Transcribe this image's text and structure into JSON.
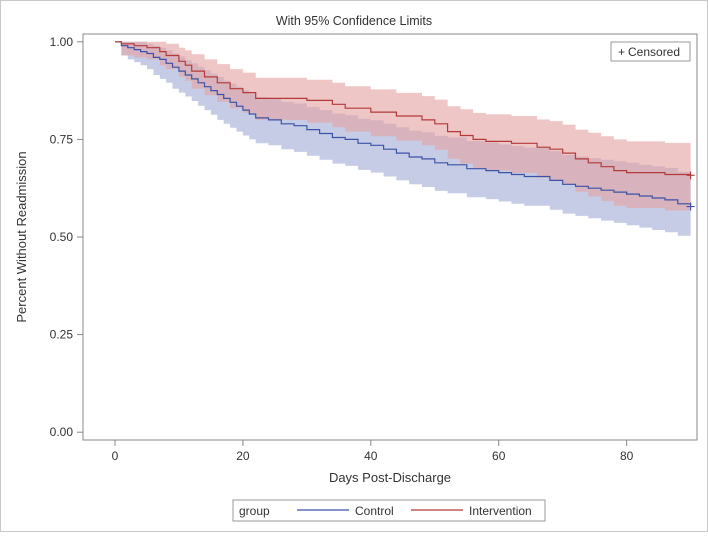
{
  "chart_data": {
    "type": "line",
    "title": "With 95% Confidence Limits",
    "xlabel": "Days Post-Discharge",
    "ylabel": "Percent Without Readmission",
    "xlim": [
      -5,
      91
    ],
    "ylim": [
      -0.02,
      1.02
    ],
    "x_ticks": [
      0,
      20,
      40,
      60,
      80
    ],
    "x_tick_labels": [
      "0",
      "20",
      "40",
      "60",
      "80"
    ],
    "y_ticks": [
      0.0,
      0.25,
      0.5,
      0.75,
      1.0
    ],
    "y_tick_labels": [
      "0.00",
      "0.25",
      "0.50",
      "0.75",
      "1.00"
    ],
    "grid": false,
    "inset_legend": {
      "label": "Censored",
      "symbol": "+",
      "position": "top-right"
    },
    "legend": {
      "title": "group",
      "position": "bottom-center"
    },
    "series": [
      {
        "name": "Control",
        "color": "#3b53a6",
        "band_color": "#a3acd6",
        "step_x": [
          0,
          1,
          2,
          3,
          4,
          5,
          6,
          7,
          8,
          9,
          10,
          11,
          12,
          13,
          14,
          15,
          16,
          17,
          18,
          19,
          20,
          21,
          22,
          24,
          26,
          28,
          30,
          32,
          34,
          36,
          38,
          40,
          42,
          44,
          46,
          48,
          50,
          52,
          55,
          58,
          60,
          62,
          64,
          66,
          68,
          70,
          72,
          74,
          76,
          78,
          80,
          82,
          84,
          86,
          88,
          90
        ],
        "step_y": [
          1.0,
          0.99,
          0.985,
          0.98,
          0.975,
          0.97,
          0.96,
          0.955,
          0.945,
          0.935,
          0.925,
          0.915,
          0.905,
          0.895,
          0.885,
          0.875,
          0.865,
          0.855,
          0.845,
          0.835,
          0.825,
          0.815,
          0.805,
          0.8,
          0.79,
          0.785,
          0.775,
          0.765,
          0.755,
          0.75,
          0.74,
          0.735,
          0.725,
          0.715,
          0.705,
          0.7,
          0.69,
          0.685,
          0.675,
          0.67,
          0.665,
          0.66,
          0.655,
          0.655,
          0.645,
          0.635,
          0.63,
          0.625,
          0.62,
          0.615,
          0.61,
          0.605,
          0.6,
          0.595,
          0.585,
          0.578
        ],
        "band_lower": [
          1.0,
          0.965,
          0.955,
          0.948,
          0.94,
          0.93,
          0.915,
          0.905,
          0.895,
          0.88,
          0.87,
          0.86,
          0.848,
          0.836,
          0.825,
          0.813,
          0.8,
          0.79,
          0.78,
          0.77,
          0.76,
          0.75,
          0.74,
          0.735,
          0.725,
          0.718,
          0.708,
          0.698,
          0.688,
          0.682,
          0.672,
          0.665,
          0.655,
          0.645,
          0.635,
          0.628,
          0.618,
          0.612,
          0.602,
          0.597,
          0.591,
          0.585,
          0.58,
          0.58,
          0.57,
          0.56,
          0.554,
          0.548,
          0.542,
          0.536,
          0.53,
          0.524,
          0.518,
          0.512,
          0.503,
          0.497
        ],
        "band_upper": [
          1.0,
          1.0,
          1.0,
          1.0,
          1.0,
          0.995,
          0.99,
          0.985,
          0.978,
          0.97,
          0.962,
          0.953,
          0.945,
          0.936,
          0.927,
          0.918,
          0.91,
          0.9,
          0.893,
          0.885,
          0.876,
          0.867,
          0.858,
          0.855,
          0.846,
          0.842,
          0.833,
          0.825,
          0.816,
          0.812,
          0.803,
          0.799,
          0.79,
          0.781,
          0.772,
          0.768,
          0.759,
          0.755,
          0.746,
          0.742,
          0.737,
          0.733,
          0.729,
          0.729,
          0.72,
          0.71,
          0.706,
          0.702,
          0.698,
          0.694,
          0.69,
          0.685,
          0.681,
          0.677,
          0.667,
          0.66
        ],
        "censor_x": [
          90
        ],
        "censor_y": [
          0.578
        ]
      },
      {
        "name": "Intervention",
        "color": "#b43a3a",
        "band_color": "#e4a3a3",
        "step_x": [
          0,
          1,
          3,
          5,
          7,
          8,
          10,
          11,
          12,
          14,
          16,
          18,
          20,
          22,
          26,
          30,
          34,
          36,
          40,
          44,
          48,
          50,
          52,
          54,
          56,
          58,
          62,
          66,
          68,
          70,
          72,
          74,
          76,
          78,
          80,
          84,
          86,
          90
        ],
        "step_y": [
          1.0,
          0.995,
          0.99,
          0.985,
          0.975,
          0.965,
          0.95,
          0.94,
          0.925,
          0.91,
          0.895,
          0.88,
          0.87,
          0.855,
          0.855,
          0.85,
          0.84,
          0.83,
          0.82,
          0.81,
          0.8,
          0.79,
          0.77,
          0.76,
          0.75,
          0.745,
          0.74,
          0.73,
          0.725,
          0.715,
          0.7,
          0.69,
          0.68,
          0.67,
          0.665,
          0.665,
          0.66,
          0.658
        ],
        "band_lower": [
          1.0,
          0.965,
          0.96,
          0.955,
          0.94,
          0.93,
          0.91,
          0.9,
          0.88,
          0.863,
          0.846,
          0.83,
          0.818,
          0.8,
          0.8,
          0.793,
          0.781,
          0.77,
          0.758,
          0.747,
          0.735,
          0.723,
          0.7,
          0.688,
          0.676,
          0.67,
          0.664,
          0.652,
          0.646,
          0.634,
          0.616,
          0.604,
          0.592,
          0.58,
          0.574,
          0.574,
          0.568,
          0.565
        ],
        "band_upper": [
          1.0,
          1.0,
          1.0,
          1.0,
          1.0,
          0.995,
          0.985,
          0.978,
          0.968,
          0.955,
          0.943,
          0.93,
          0.921,
          0.908,
          0.908,
          0.903,
          0.895,
          0.886,
          0.878,
          0.869,
          0.861,
          0.852,
          0.835,
          0.827,
          0.818,
          0.814,
          0.81,
          0.801,
          0.797,
          0.788,
          0.775,
          0.767,
          0.758,
          0.75,
          0.745,
          0.745,
          0.741,
          0.739
        ],
        "censor_x": [
          90
        ],
        "censor_y": [
          0.658
        ]
      }
    ]
  }
}
